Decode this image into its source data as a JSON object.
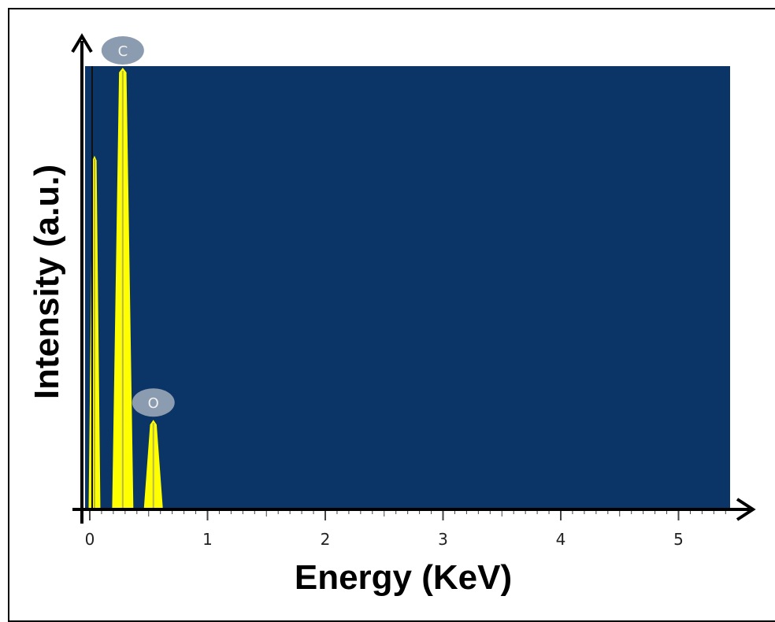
{
  "chart_data": {
    "type": "spectrum",
    "xlabel": "Energy (KeV)",
    "ylabel": "Intensity (a.u.)",
    "xlim": [
      0,
      5.4
    ],
    "ylim": [
      0,
      100
    ],
    "x_ticks": [
      "0",
      "1",
      "2",
      "3",
      "4",
      "5"
    ],
    "x_tick_values": [
      0,
      1,
      2,
      3,
      4,
      5
    ],
    "plot_background": "#0b3566",
    "peak_color": "#ffff00",
    "peaks": [
      {
        "center": 0.04,
        "height": 80,
        "half_width": 0.05,
        "label": ""
      },
      {
        "center": 0.28,
        "height": 100,
        "half_width": 0.09,
        "label": "C"
      },
      {
        "center": 0.54,
        "height": 20,
        "half_width": 0.08,
        "label": "O"
      }
    ],
    "label_marker_color": "#8c9cb0"
  }
}
